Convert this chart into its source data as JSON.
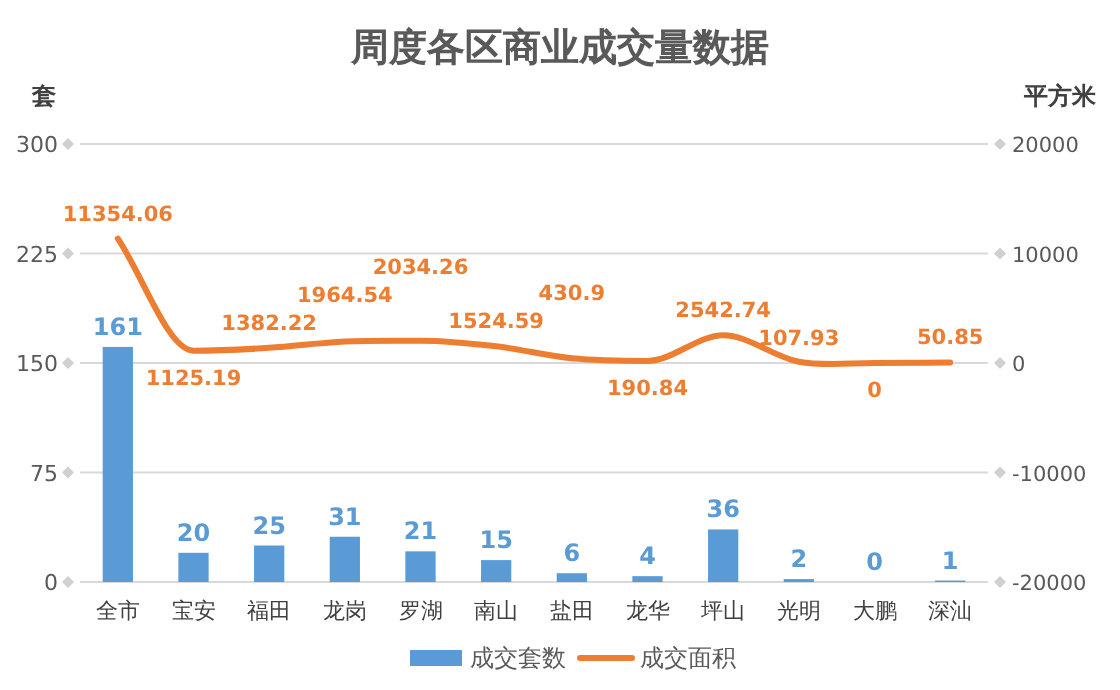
{
  "chart_data": {
    "type": "bar",
    "title": "周度各区商业成交量数据",
    "ylabel": "套",
    "y2label": "平方米",
    "categories": [
      "全市",
      "宝安",
      "福田",
      "龙岗",
      "罗湖",
      "南山",
      "盐田",
      "龙华",
      "坪山",
      "光明",
      "大鹏",
      "深汕"
    ],
    "series": [
      {
        "name": "成交套数",
        "color": "#5b9bd5",
        "values": [
          161,
          20,
          25,
          31,
          21,
          15,
          6,
          4,
          36,
          2,
          0,
          1
        ]
      },
      {
        "name": "成交面积",
        "type": "line",
        "axis": "y2",
        "color": "#ed7d31",
        "values": [
          11354.06,
          1125.19,
          1382.22,
          1964.54,
          2034.26,
          1524.59,
          430.9,
          190.84,
          2542.74,
          107.93,
          0,
          50.85
        ]
      }
    ],
    "ylim": [
      0,
      300
    ],
    "yticks": [
      0,
      75,
      150,
      225,
      300
    ],
    "y2lim": [
      -20000,
      20000
    ],
    "y2ticks": [
      -20000,
      -10000,
      0,
      10000,
      20000
    ],
    "grid": "y",
    "legend": "bottom",
    "data_labels": true
  }
}
